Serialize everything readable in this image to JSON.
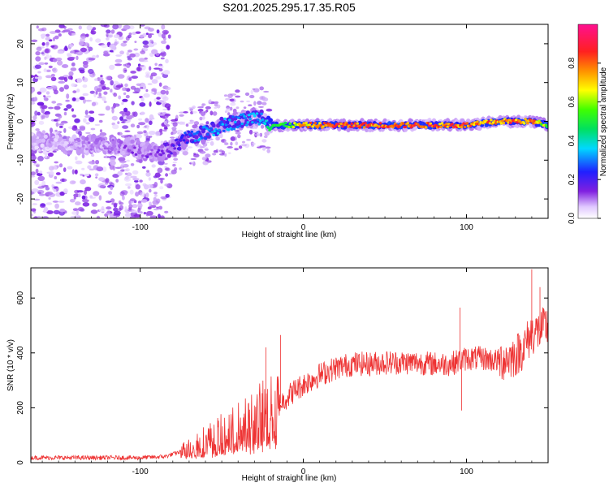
{
  "chart_data": [
    {
      "type": "heatmap",
      "title": "S201.2025.295.17.35.R05",
      "xlabel": "Height of straight line (km)",
      "ylabel": "Frequency (Hz)",
      "xlim": [
        -167,
        150
      ],
      "ylim": [
        -25,
        25
      ],
      "x_ticks": [
        -100,
        0,
        100
      ],
      "y_ticks": [
        -20,
        -10,
        0,
        10,
        20
      ],
      "colorbar": {
        "label": "Normalized spectral amplitude",
        "range": [
          0.0,
          1.0
        ],
        "ticks": [
          0.0,
          0.2,
          0.4,
          0.6,
          0.8
        ]
      },
      "ridge": {
        "x": [
          -167,
          -140,
          -120,
          -100,
          -90,
          -80,
          -70,
          -60,
          -50,
          -40,
          -30,
          -25,
          -20,
          -10,
          0,
          20,
          40,
          60,
          80,
          100,
          120,
          140,
          150
        ],
        "frequency_hz": [
          -5,
          -6,
          -6,
          -7,
          -8,
          -7,
          -4,
          -3,
          -1,
          0,
          1,
          1,
          -1,
          -1,
          -1,
          -1,
          -1,
          -1,
          -1,
          -1,
          0,
          0,
          -1
        ],
        "amplitude": [
          0.05,
          0.1,
          0.12,
          0.15,
          0.15,
          0.2,
          0.3,
          0.35,
          0.35,
          0.35,
          0.35,
          0.35,
          0.5,
          0.6,
          0.8,
          0.9,
          0.9,
          0.9,
          0.9,
          0.9,
          0.85,
          0.85,
          0.6
        ]
      }
    },
    {
      "type": "line",
      "xlabel": "Height of straight line (km)",
      "ylabel": "SNR (10 * v/v)",
      "xlim": [
        -167,
        150
      ],
      "ylim": [
        0,
        710
      ],
      "x_ticks": [
        -100,
        0,
        100
      ],
      "y_ticks": [
        0,
        200,
        400,
        600
      ],
      "color": "#ee3333",
      "trend": {
        "x": [
          -167,
          -140,
          -120,
          -100,
          -85,
          -75,
          -65,
          -55,
          -45,
          -35,
          -25,
          -20,
          -15,
          -10,
          -5,
          0,
          10,
          20,
          30,
          40,
          50,
          60,
          70,
          80,
          90,
          95,
          100,
          110,
          120,
          130,
          135,
          140,
          145,
          150
        ],
        "y": [
          18,
          18,
          18,
          18,
          22,
          40,
          70,
          90,
          115,
          140,
          175,
          180,
          210,
          240,
          265,
          285,
          320,
          345,
          360,
          360,
          365,
          365,
          365,
          360,
          360,
          370,
          380,
          380,
          370,
          390,
          420,
          470,
          480,
          500
        ]
      },
      "spikes": [
        {
          "x": -14,
          "y": 465
        },
        {
          "x": -23,
          "y": 420
        },
        {
          "x": 96,
          "y": 565
        },
        {
          "x": 97,
          "y": 190
        },
        {
          "x": 140,
          "y": 705
        },
        {
          "x": 145,
          "y": 640
        }
      ]
    }
  ]
}
